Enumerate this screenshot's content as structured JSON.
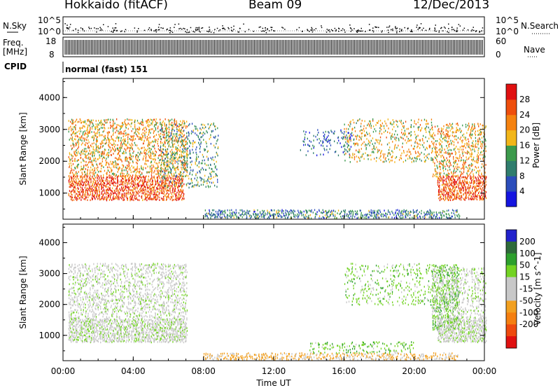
{
  "header": {
    "station": "Hokkaido (fitACF)",
    "beam": "Beam 09",
    "date": "12/Dec/2013"
  },
  "strip_labels": {
    "nsky": "N.Sky",
    "freq_line1": "Freq.",
    "freq_line2": "[MHz]",
    "cpid": "CPID",
    "nsearch": "N.Search",
    "nave": "Nave",
    "nsky_ticks": [
      "10^5",
      "10^0"
    ],
    "nsearch_ticks": [
      "10^5",
      "10^0"
    ],
    "freq_ticks": [
      "18",
      "8"
    ],
    "nave_ticks": [
      "60",
      "0"
    ],
    "cpid_text": "normal (fast) 151"
  },
  "colors": {
    "power_scale": [
      "#1515e0",
      "#2b4dbb",
      "#2f7d6d",
      "#3c9a4c",
      "#f2b619",
      "#f5820f",
      "#ee4e0c",
      "#e01010"
    ],
    "velocity_scale": [
      "#2222cc",
      "#2e6a3a",
      "#2da02d",
      "#73d323",
      "#c8c8c8",
      "#c8c8c8",
      "#f2a020",
      "#f57f10",
      "#ee4a0e",
      "#e01010"
    ],
    "ground_scatter": "#a9a9a9"
  },
  "chart_data": [
    {
      "type": "heatmap",
      "title": "",
      "xlabel": "Time UT",
      "ylabel": "Slant Range [km]",
      "x_ticks": [
        "00:00",
        "04:00",
        "08:00",
        "12:00",
        "16:00",
        "20:00",
        "00:00"
      ],
      "y_ticks": [
        1000,
        2000,
        3000,
        4000
      ],
      "ylim": [
        180,
        4600
      ],
      "xlim_hours": [
        0,
        24
      ],
      "colorbar_label": "Power [dB]",
      "colorbar_ticks": [
        4,
        8,
        12,
        16,
        20,
        24,
        28
      ],
      "colorbar_range": [
        0,
        32
      ],
      "regions": [
        {
          "t": [
            0.3,
            6.8
          ],
          "r": [
            800,
            1550
          ],
          "level": 26,
          "density": 0.8
        },
        {
          "t": [
            0.3,
            7.0
          ],
          "r": [
            1550,
            3350
          ],
          "level": 20,
          "density": 0.45
        },
        {
          "t": [
            5.5,
            8.8
          ],
          "r": [
            1200,
            3200
          ],
          "level": 12,
          "density": 0.25
        },
        {
          "t": [
            8.0,
            22.5
          ],
          "r": [
            230,
            500
          ],
          "level": 10,
          "density": 0.55
        },
        {
          "t": [
            13.5,
            16.5
          ],
          "r": [
            2200,
            3000
          ],
          "level": 6,
          "density": 0.2
        },
        {
          "t": [
            16.0,
            21.0
          ],
          "r": [
            2000,
            3350
          ],
          "level": 18,
          "density": 0.25
        },
        {
          "t": [
            21.3,
            24.0
          ],
          "r": [
            800,
            1550
          ],
          "level": 26,
          "density": 0.8
        },
        {
          "t": [
            21.0,
            24.0
          ],
          "r": [
            1550,
            3200
          ],
          "level": 20,
          "density": 0.4
        }
      ]
    },
    {
      "type": "heatmap",
      "title": "",
      "xlabel": "Time UT",
      "ylabel": "Slant Range [km]",
      "x_ticks": [
        "00:00",
        "04:00",
        "08:00",
        "12:00",
        "16:00",
        "20:00",
        "00:00"
      ],
      "y_ticks": [
        1000,
        2000,
        3000,
        4000
      ],
      "ylim": [
        180,
        4600
      ],
      "xlim_hours": [
        0,
        24
      ],
      "colorbar_label": "Velocity [m s^-1]",
      "colorbar_ticks": [
        200,
        100,
        50,
        15,
        -15,
        -50,
        -100,
        -200
      ],
      "regions": [
        {
          "t": [
            0.3,
            7.0
          ],
          "r": [
            800,
            1550
          ],
          "level": 0,
          "density": 0.8
        },
        {
          "t": [
            0.3,
            7.0
          ],
          "r": [
            1550,
            3350
          ],
          "level": 0,
          "density": 0.4
        },
        {
          "t": [
            8.0,
            22.5
          ],
          "r": [
            230,
            450
          ],
          "level": -60,
          "density": 0.5
        },
        {
          "t": [
            14.0,
            20.0
          ],
          "r": [
            450,
            800
          ],
          "level": 40,
          "density": 0.25
        },
        {
          "t": [
            16.0,
            21.0
          ],
          "r": [
            2000,
            3350
          ],
          "level": 30,
          "density": 0.2
        },
        {
          "t": [
            21.0,
            22.5
          ],
          "r": [
            1200,
            3300
          ],
          "level": 40,
          "density": 0.5
        },
        {
          "t": [
            21.3,
            24.0
          ],
          "r": [
            800,
            1550
          ],
          "level": 0,
          "density": 0.8
        },
        {
          "t": [
            21.0,
            24.0
          ],
          "r": [
            1550,
            3200
          ],
          "level": 0,
          "density": 0.35
        }
      ]
    }
  ]
}
